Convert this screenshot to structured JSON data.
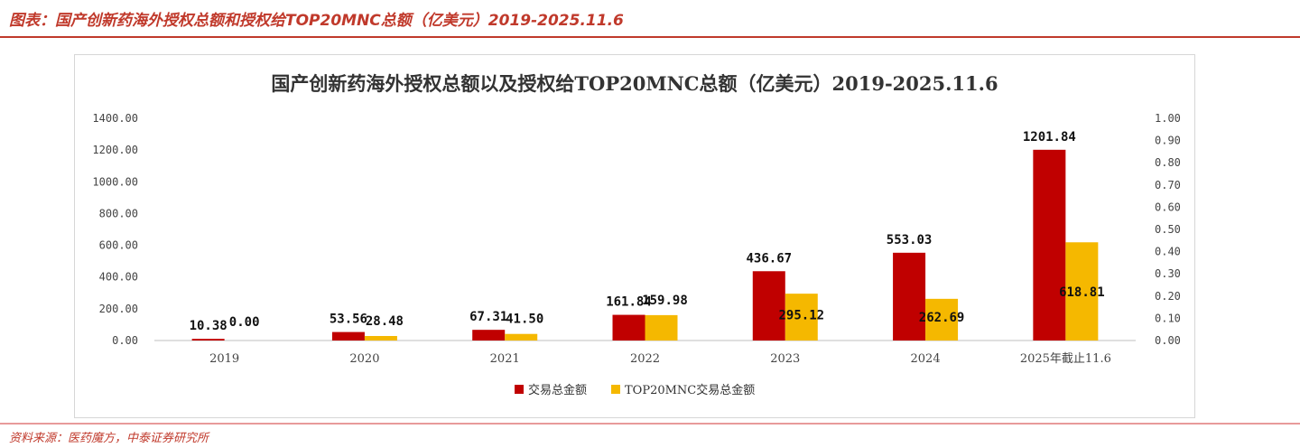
{
  "header": {
    "title": "图表：国产创新药海外授权总额和授权给TOP20MNC总额（亿美元）2019-2025.11.6"
  },
  "footer": {
    "source": "资料来源：医药魔方，中泰证券研究所"
  },
  "colors": {
    "accent": "#c0392b",
    "series1": "#c00000",
    "series2": "#f5b800"
  },
  "chart_data": {
    "type": "bar",
    "title": "国产创新药海外授权总额以及授权给TOP20MNC总额（亿美元）2019-2025.11.6",
    "categories": [
      "2019",
      "2020",
      "2021",
      "2022",
      "2023",
      "2024",
      "2025年截止11.6"
    ],
    "series": [
      {
        "name": "交易总金额",
        "values": [
          10.38,
          53.56,
          67.31,
          161.84,
          436.67,
          553.03,
          1201.84
        ],
        "labels": [
          "10.38",
          "53.56",
          "67.31",
          "161.84",
          "436.67",
          "553.03",
          "1201.84"
        ]
      },
      {
        "name": "TOP20MNC交易总金额",
        "values": [
          0.0,
          28.48,
          41.5,
          159.98,
          295.12,
          262.69,
          618.81
        ],
        "labels": [
          "0.00",
          "28.48",
          "41.50",
          "159.98",
          "295.12",
          "262.69",
          "618.81"
        ]
      }
    ],
    "ylim": [
      0,
      1400
    ],
    "yticks": [
      "0.00",
      "200.00",
      "400.00",
      "600.00",
      "800.00",
      "1000.00",
      "1200.00",
      "1400.00"
    ],
    "y2lim": [
      0,
      1
    ],
    "y2ticks": [
      "0.00",
      "0.10",
      "0.20",
      "0.30",
      "0.40",
      "0.50",
      "0.60",
      "0.70",
      "0.80",
      "0.90",
      "1.00"
    ],
    "legend": "bottom-center",
    "grid": false
  }
}
